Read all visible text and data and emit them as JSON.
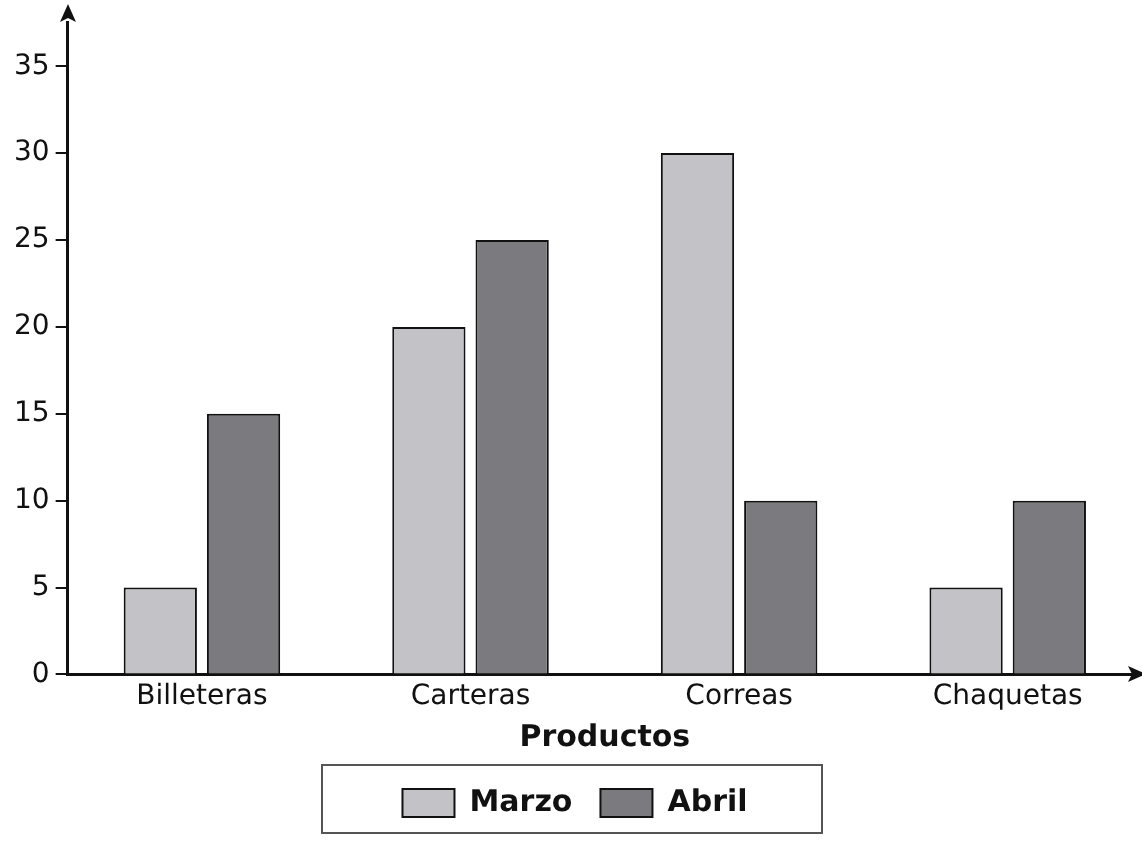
{
  "chart_data": {
    "type": "bar",
    "xlabel": "Productos",
    "categories": [
      "Billeteras",
      "Carteras",
      "Correas",
      "Chaquetas"
    ],
    "series": [
      {
        "name": "Marzo",
        "color": "#c3c3c7",
        "values": [
          5,
          20,
          30,
          5
        ]
      },
      {
        "name": "Abril",
        "color": "#7b7b7f",
        "values": [
          15,
          25,
          10,
          10
        ]
      }
    ],
    "ylim": [
      0,
      37.5
    ],
    "yticks": [
      0,
      5,
      10,
      15,
      20,
      25,
      30,
      35
    ],
    "grid": false,
    "legend": "bottom"
  }
}
